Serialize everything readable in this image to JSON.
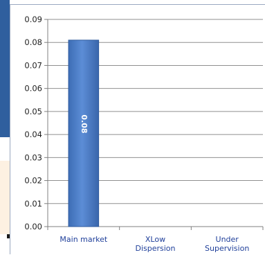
{
  "chart_data": {
    "type": "bar",
    "categories": [
      "Main market",
      "XLow Dispersion",
      "Under Supervision"
    ],
    "category_lines": [
      [
        "Main market"
      ],
      [
        "XLow",
        "Dispersion"
      ],
      [
        "Under",
        "Supervision"
      ]
    ],
    "values": [
      0.081,
      0,
      0
    ],
    "data_labels": [
      "0.08",
      "",
      ""
    ],
    "ylim": [
      0,
      0.09
    ],
    "yticks": [
      "0.00",
      "0.01",
      "0.02",
      "0.03",
      "0.04",
      "0.05",
      "0.06",
      "0.07",
      "0.08",
      "0.09"
    ],
    "grid": true,
    "legend": "none",
    "title": "",
    "xlabel": "",
    "ylabel": "",
    "colors": {
      "bar": "#4f7fc8",
      "bar_edge": "#2e5a9e",
      "grid": "#8f8f8f",
      "axis": "#7f7f7f"
    }
  }
}
